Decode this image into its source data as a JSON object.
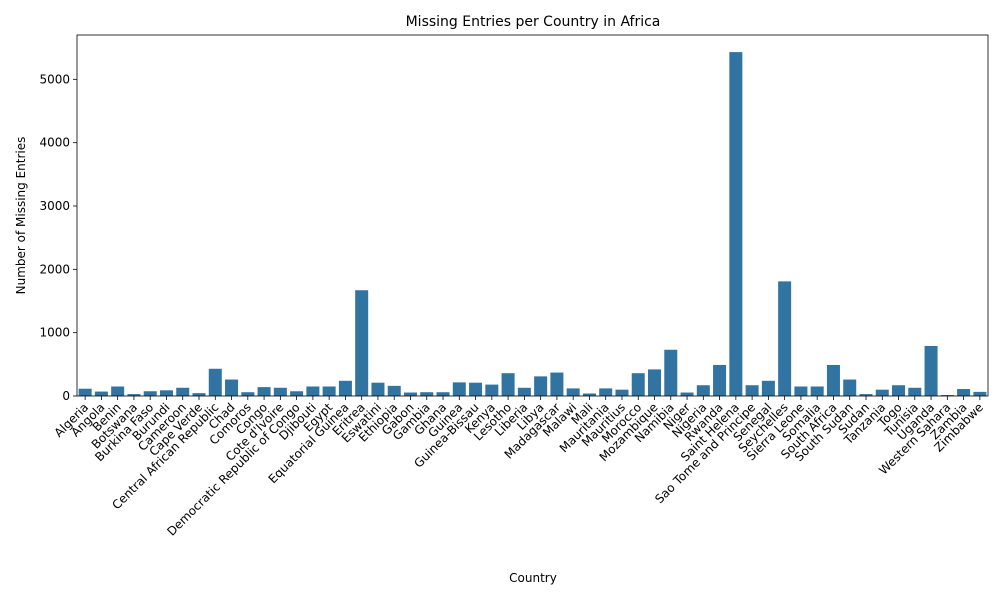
{
  "chart_data": {
    "type": "bar",
    "title": "Missing Entries per Country in Africa",
    "xlabel": "Country",
    "ylabel": "Number of Missing Entries",
    "ylim": [
      0,
      5700
    ],
    "yticks": [
      0,
      1000,
      2000,
      3000,
      4000,
      5000
    ],
    "bar_color": "#3274a1",
    "grid": false,
    "categories": [
      "Algeria",
      "Angola",
      "Benin",
      "Botswana",
      "Burkina Faso",
      "Burundi",
      "Cameroon",
      "Cape Verde",
      "Central African Republic",
      "Chad",
      "Comoros",
      "Congo",
      "Cote d'Ivoire",
      "Democratic Republic of Congo",
      "Djibouti",
      "Egypt",
      "Equatorial Guinea",
      "Eritrea",
      "Eswatini",
      "Ethiopia",
      "Gabon",
      "Gambia",
      "Ghana",
      "Guinea",
      "Guinea-Bissau",
      "Kenya",
      "Lesotho",
      "Liberia",
      "Libya",
      "Madagascar",
      "Malawi",
      "Mali",
      "Mauritania",
      "Mauritius",
      "Morocco",
      "Mozambique",
      "Namibia",
      "Niger",
      "Nigeria",
      "Rwanda",
      "Saint Helena",
      "Sao Tome and Principe",
      "Senegal",
      "Seychelles",
      "Sierra Leone",
      "Somalia",
      "South Africa",
      "South Sudan",
      "Sudan",
      "Tanzania",
      "Togo",
      "Tunisia",
      "Uganda",
      "Western Sahara",
      "Zambia",
      "Zimbabwe"
    ],
    "values": [
      115,
      70,
      150,
      30,
      75,
      90,
      130,
      45,
      430,
      260,
      60,
      140,
      130,
      75,
      150,
      150,
      240,
      1670,
      210,
      160,
      55,
      60,
      60,
      215,
      210,
      180,
      360,
      130,
      310,
      370,
      120,
      40,
      120,
      100,
      360,
      420,
      730,
      55,
      170,
      490,
      5430,
      170,
      240,
      1810,
      150,
      150,
      490,
      260,
      30,
      100,
      170,
      130,
      790,
      15,
      110,
      65
    ]
  }
}
